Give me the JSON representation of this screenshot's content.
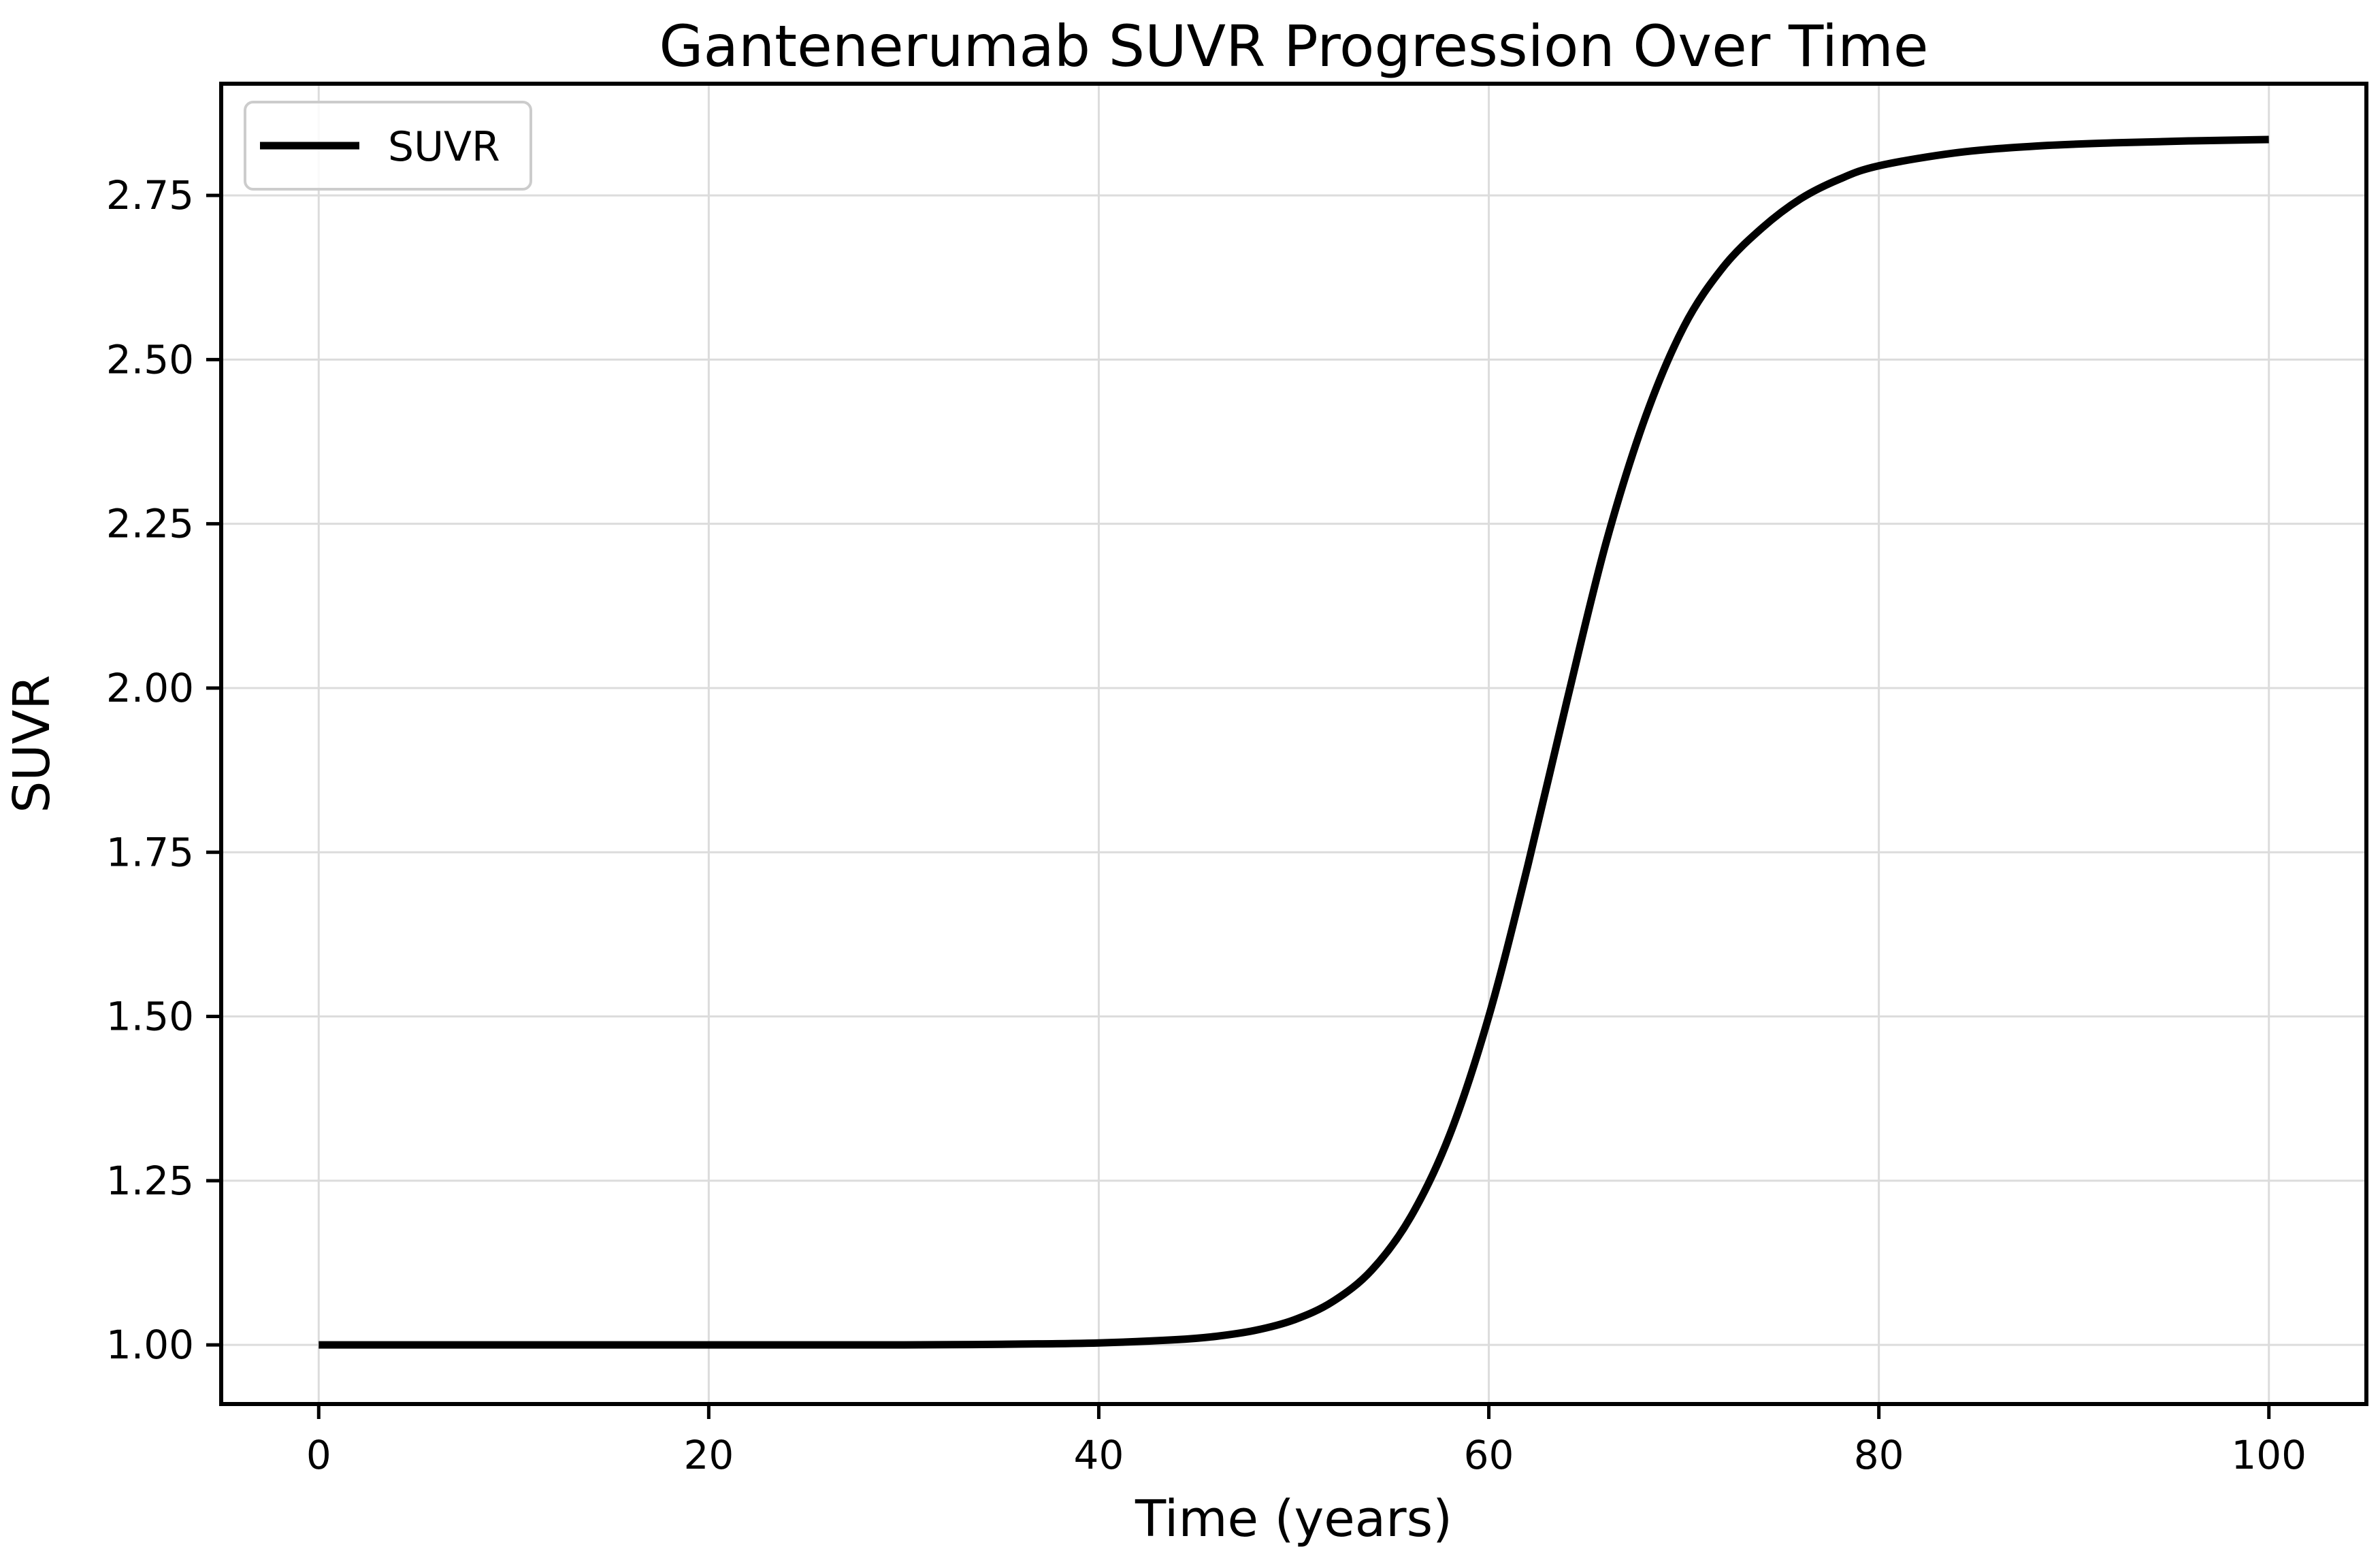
{
  "chart_data": {
    "type": "line",
    "title": "Gantenerumab SUVR Progression Over Time",
    "xlabel": "Time (years)",
    "ylabel": "SUVR",
    "xlim": [
      -5,
      105
    ],
    "ylim": [
      0.91,
      2.92
    ],
    "xticks": [
      0,
      20,
      40,
      60,
      80,
      100
    ],
    "xtick_labels": [
      "0",
      "20",
      "40",
      "60",
      "80",
      "100"
    ],
    "yticks": [
      1.0,
      1.25,
      1.5,
      1.75,
      2.0,
      2.25,
      2.5,
      2.75
    ],
    "ytick_labels": [
      "1.00",
      "1.25",
      "1.50",
      "1.75",
      "2.00",
      "2.25",
      "2.50",
      "2.75"
    ],
    "grid": true,
    "legend_position": "top-left",
    "series": [
      {
        "name": "SUVR",
        "color": "#000000",
        "x": [
          0,
          10,
          20,
          30,
          35,
          40,
          44,
          46,
          48,
          50,
          52,
          54,
          56,
          58,
          60,
          62,
          64,
          66,
          68,
          70,
          72,
          74,
          76,
          78,
          80,
          84,
          88,
          92,
          96,
          100
        ],
        "y": [
          1.0,
          1.0,
          1.0,
          1.0,
          1.001,
          1.003,
          1.008,
          1.013,
          1.022,
          1.038,
          1.066,
          1.114,
          1.195,
          1.32,
          1.5,
          1.73,
          1.98,
          2.22,
          2.41,
          2.55,
          2.64,
          2.7,
          2.745,
          2.775,
          2.795,
          2.815,
          2.825,
          2.83,
          2.833,
          2.835
        ]
      }
    ]
  }
}
